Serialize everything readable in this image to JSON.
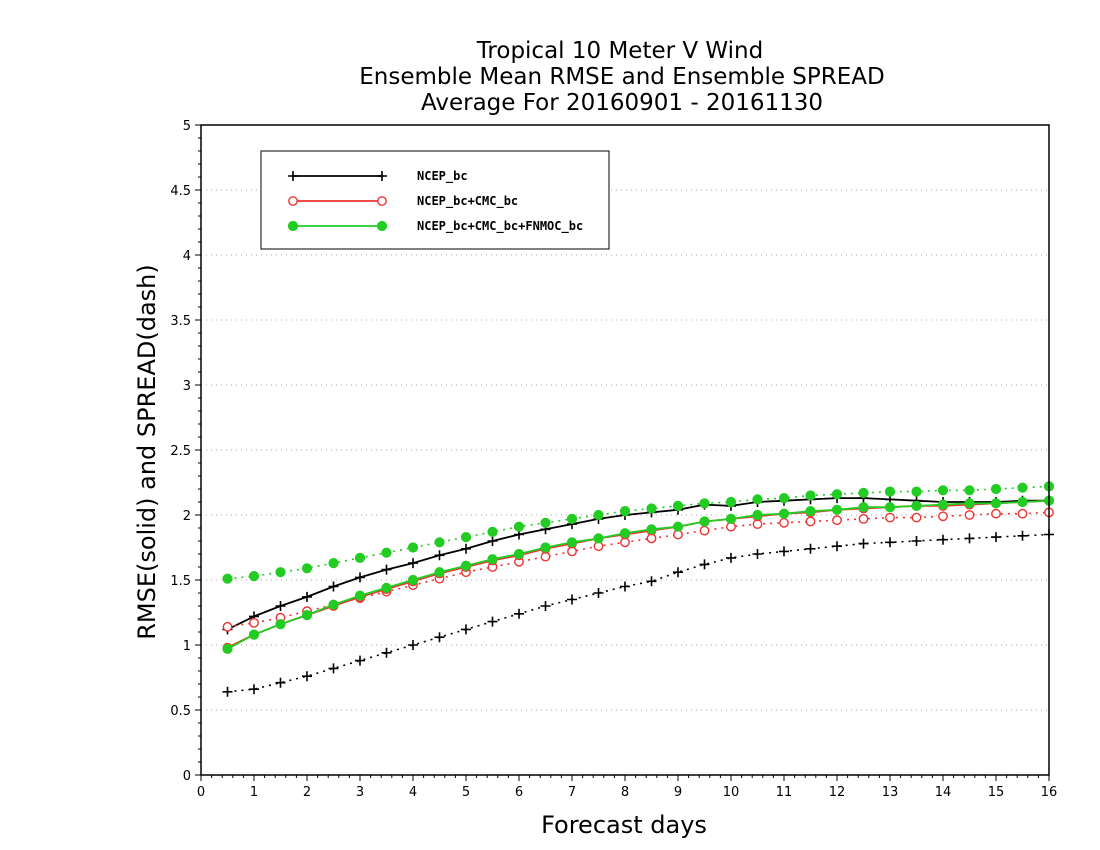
{
  "chart_data": {
    "type": "line",
    "title_lines": [
      "Tropical 10 Meter V Wind",
      "Ensemble Mean RMSE and Ensemble SPREAD",
      "Average For 20160901 - 20161130"
    ],
    "xlabel": "Forecast days",
    "ylabel": "RMSE(solid) and SPREAD(dash)",
    "xlim": [
      0,
      16
    ],
    "ylim": [
      0,
      5
    ],
    "xticks": [
      0,
      1,
      2,
      3,
      4,
      5,
      6,
      7,
      8,
      9,
      10,
      11,
      12,
      13,
      14,
      15,
      16
    ],
    "yticks": [
      0,
      0.5,
      1,
      1.5,
      2,
      2.5,
      3,
      3.5,
      4,
      4.5,
      5
    ],
    "ytick_labels": [
      "0",
      "0.5",
      "1",
      "1.5",
      "2",
      "2.5",
      "3",
      "3.5",
      "4",
      "4.5",
      "5"
    ],
    "grid": "horizontal dotted",
    "legend_placement": "top-left",
    "x": [
      0.5,
      1,
      1.5,
      2,
      2.5,
      3,
      3.5,
      4,
      4.5,
      5,
      5.5,
      6,
      6.5,
      7,
      7.5,
      8,
      8.5,
      9,
      9.5,
      10,
      10.5,
      11,
      11.5,
      12,
      12.5,
      13,
      13.5,
      14,
      14.5,
      15,
      15.5,
      16
    ],
    "series": [
      {
        "name": "NCEP_bc",
        "color": "#000000",
        "marker": "plus",
        "rmse": [
          1.12,
          1.22,
          1.3,
          1.37,
          1.45,
          1.52,
          1.58,
          1.63,
          1.69,
          1.74,
          1.8,
          1.85,
          1.89,
          1.93,
          1.97,
          2.0,
          2.02,
          2.04,
          2.08,
          2.07,
          2.1,
          2.11,
          2.12,
          2.13,
          2.13,
          2.12,
          2.11,
          2.1,
          2.1,
          2.1,
          2.11,
          2.11
        ],
        "spread": [
          0.64,
          0.66,
          0.71,
          0.76,
          0.82,
          0.88,
          0.94,
          1.0,
          1.06,
          1.12,
          1.18,
          1.24,
          1.3,
          1.35,
          1.4,
          1.45,
          1.49,
          1.56,
          1.62,
          1.67,
          1.7,
          1.72,
          1.74,
          1.76,
          1.78,
          1.79,
          1.8,
          1.81,
          1.82,
          1.83,
          1.84,
          1.85
        ]
      },
      {
        "name": "NCEP_bc+CMC_bc",
        "color": "#ee3333",
        "marker": "open-circle",
        "rmse": [
          0.98,
          1.08,
          1.16,
          1.23,
          1.3,
          1.37,
          1.43,
          1.49,
          1.55,
          1.6,
          1.65,
          1.69,
          1.74,
          1.78,
          1.82,
          1.85,
          1.88,
          1.91,
          1.95,
          1.97,
          1.99,
          2.01,
          2.02,
          2.04,
          2.05,
          2.06,
          2.07,
          2.07,
          2.08,
          2.09,
          2.1,
          2.11
        ],
        "spread": [
          1.14,
          1.17,
          1.21,
          1.26,
          1.31,
          1.36,
          1.41,
          1.46,
          1.51,
          1.56,
          1.6,
          1.64,
          1.68,
          1.72,
          1.76,
          1.79,
          1.82,
          1.85,
          1.88,
          1.91,
          1.93,
          1.94,
          1.95,
          1.96,
          1.97,
          1.98,
          1.98,
          1.99,
          2.0,
          2.01,
          2.01,
          2.02
        ]
      },
      {
        "name": "NCEP_bc+CMC_bc+FNMOC_bc",
        "color": "#22cc22",
        "marker": "filled-circle",
        "rmse": [
          0.97,
          1.08,
          1.16,
          1.23,
          1.31,
          1.38,
          1.44,
          1.5,
          1.56,
          1.61,
          1.66,
          1.7,
          1.75,
          1.79,
          1.82,
          1.86,
          1.89,
          1.91,
          1.95,
          1.97,
          2.0,
          2.01,
          2.03,
          2.04,
          2.06,
          2.06,
          2.07,
          2.08,
          2.09,
          2.09,
          2.1,
          2.11
        ],
        "spread": [
          1.51,
          1.53,
          1.56,
          1.59,
          1.63,
          1.67,
          1.71,
          1.75,
          1.79,
          1.83,
          1.87,
          1.91,
          1.94,
          1.97,
          2.0,
          2.03,
          2.05,
          2.07,
          2.09,
          2.1,
          2.12,
          2.13,
          2.15,
          2.16,
          2.17,
          2.18,
          2.18,
          2.19,
          2.19,
          2.2,
          2.21,
          2.22
        ]
      }
    ]
  }
}
